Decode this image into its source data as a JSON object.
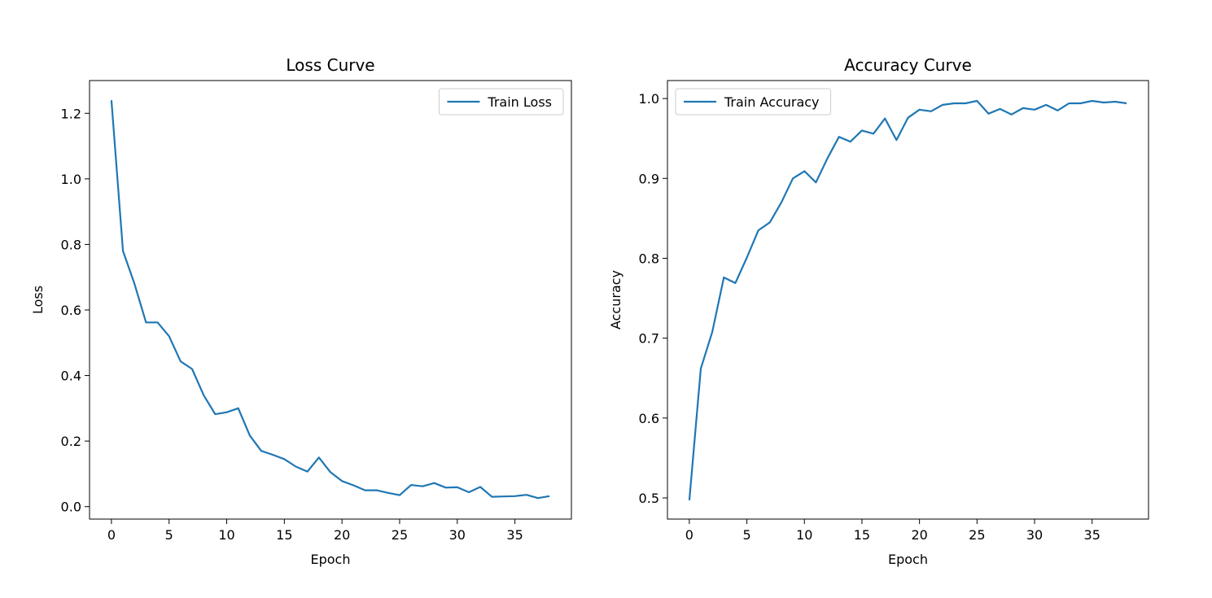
{
  "chart_data": [
    {
      "type": "line",
      "title": "Loss Curve",
      "xlabel": "Epoch",
      "ylabel": "Loss",
      "xlim": [
        -1.9,
        39.9
      ],
      "ylim": [
        -0.038,
        1.3
      ],
      "xticks": [
        0,
        5,
        10,
        15,
        20,
        25,
        30,
        35
      ],
      "yticks": [
        0.0,
        0.2,
        0.4,
        0.6,
        0.8,
        1.0,
        1.2
      ],
      "yticks_labels": [
        "0.0",
        "0.2",
        "0.4",
        "0.6",
        "0.8",
        "1.0",
        "1.2"
      ],
      "grid": false,
      "legend_position": "upper right",
      "series": [
        {
          "name": "Train Loss",
          "color": "#1f77b4",
          "x": [
            0,
            1,
            2,
            3,
            4,
            5,
            6,
            7,
            8,
            9,
            10,
            11,
            12,
            13,
            14,
            15,
            16,
            17,
            18,
            19,
            20,
            21,
            22,
            23,
            24,
            25,
            26,
            27,
            28,
            29,
            30,
            31,
            32,
            33,
            34,
            35,
            36,
            37,
            38
          ],
          "values": [
            1.24,
            0.78,
            0.68,
            0.562,
            0.562,
            0.52,
            0.443,
            0.42,
            0.34,
            0.282,
            0.288,
            0.3,
            0.217,
            0.17,
            0.158,
            0.145,
            0.122,
            0.107,
            0.15,
            0.105,
            0.078,
            0.065,
            0.05,
            0.05,
            0.042,
            0.035,
            0.066,
            0.062,
            0.072,
            0.058,
            0.059,
            0.044,
            0.06,
            0.03,
            0.031,
            0.032,
            0.036,
            0.026,
            0.032
          ]
        }
      ]
    },
    {
      "type": "line",
      "title": "Accuracy Curve",
      "xlabel": "Epoch",
      "ylabel": "Accuracy",
      "xlim": [
        -1.9,
        39.9
      ],
      "ylim": [
        0.4735,
        1.0225
      ],
      "xticks": [
        0,
        5,
        10,
        15,
        20,
        25,
        30,
        35
      ],
      "yticks": [
        0.5,
        0.6,
        0.7,
        0.8,
        0.9,
        1.0
      ],
      "yticks_labels": [
        "0.5",
        "0.6",
        "0.7",
        "0.8",
        "0.9",
        "1.0"
      ],
      "grid": false,
      "legend_position": "upper left",
      "series": [
        {
          "name": "Train Accuracy",
          "color": "#1f77b4",
          "x": [
            0,
            1,
            2,
            3,
            4,
            5,
            6,
            7,
            8,
            9,
            10,
            11,
            12,
            13,
            14,
            15,
            16,
            17,
            18,
            19,
            20,
            21,
            22,
            23,
            24,
            25,
            26,
            27,
            28,
            29,
            30,
            31,
            32,
            33,
            34,
            35,
            36,
            37,
            38
          ],
          "values": [
            0.497,
            0.662,
            0.708,
            0.776,
            0.769,
            0.801,
            0.835,
            0.845,
            0.87,
            0.9,
            0.909,
            0.895,
            0.925,
            0.952,
            0.946,
            0.96,
            0.956,
            0.975,
            0.948,
            0.976,
            0.986,
            0.984,
            0.992,
            0.994,
            0.994,
            0.997,
            0.981,
            0.987,
            0.98,
            0.988,
            0.986,
            0.992,
            0.985,
            0.994,
            0.994,
            0.997,
            0.995,
            0.996,
            0.994
          ]
        }
      ]
    }
  ]
}
